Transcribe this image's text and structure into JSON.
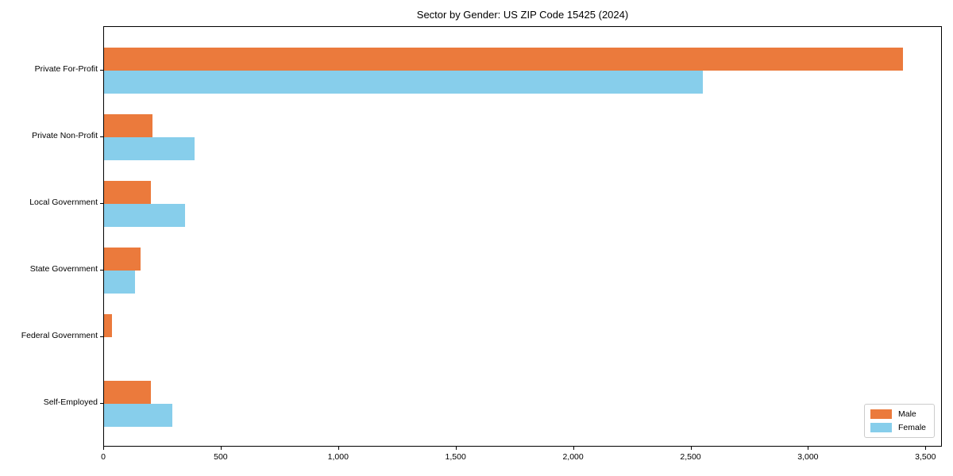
{
  "chart_data": {
    "type": "bar",
    "orientation": "horizontal",
    "title": "Sector by Gender: US ZIP Code 15425 (2024)",
    "categories": [
      "Private For-Profit",
      "Private Non-Profit",
      "Local Government",
      "State Government",
      "Federal Government",
      "Self-Employed"
    ],
    "series": [
      {
        "name": "Male",
        "color": "#EB7A3C",
        "values": [
          3400,
          205,
          200,
          155,
          35,
          200
        ]
      },
      {
        "name": "Female",
        "color": "#87CEEB",
        "values": [
          2550,
          385,
          345,
          130,
          0,
          290
        ]
      }
    ],
    "xlabel": "",
    "ylabel": "",
    "xlim": [
      0,
      3570
    ],
    "xticks": [
      {
        "value": 0,
        "label": "0"
      },
      {
        "value": 500,
        "label": "500"
      },
      {
        "value": 1000,
        "label": "1,000"
      },
      {
        "value": 1500,
        "label": "1,500"
      },
      {
        "value": 2000,
        "label": "2,000"
      },
      {
        "value": 2500,
        "label": "2,500"
      },
      {
        "value": 3000,
        "label": "3,000"
      },
      {
        "value": 3500,
        "label": "3,500"
      }
    ],
    "grid": false,
    "legend_position": "lower right"
  }
}
